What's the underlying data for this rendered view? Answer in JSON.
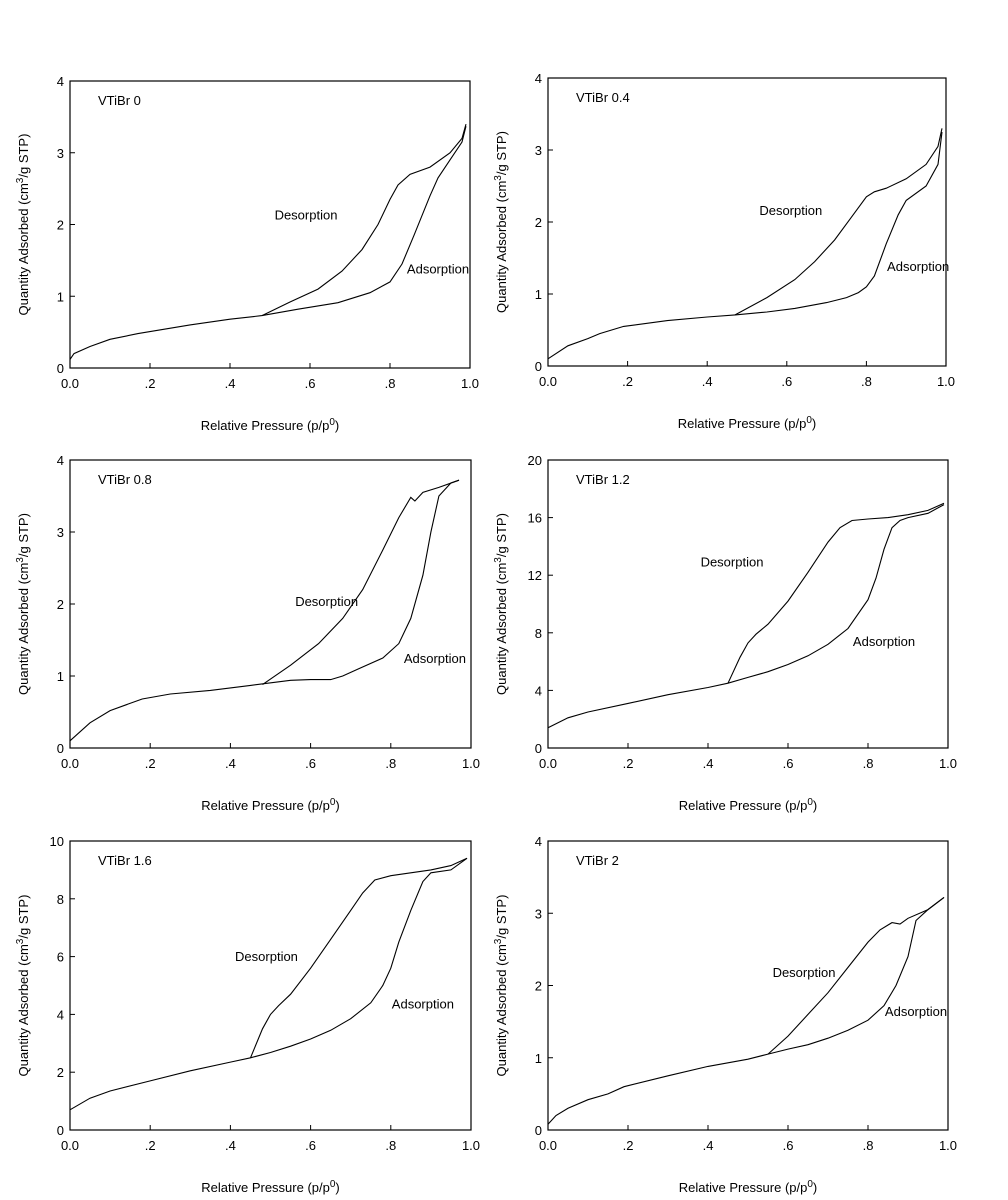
{
  "chart_data": [
    {
      "type": "line",
      "title": "VTiBr 0",
      "xlabel": "Relative Pressure (p/p0)",
      "ylabel": "Quantity Adsorbed (cm3/g STP)",
      "xlim": [
        0,
        1.0
      ],
      "ylim": [
        0,
        4
      ],
      "xticks": [
        "0.0",
        ".2",
        ".4",
        ".6",
        ".8",
        "1.0"
      ],
      "yticks": [
        "0",
        "1",
        "2",
        "3",
        "4"
      ],
      "grid": false,
      "annotations": [
        {
          "text": "Desorption",
          "x": 0.59,
          "y": 2.07
        },
        {
          "text": "Adsorption",
          "x": 0.92,
          "y": 1.32
        }
      ],
      "series": [
        {
          "name": "Adsorption",
          "x": [
            0.0,
            0.01,
            0.05,
            0.1,
            0.17,
            0.3,
            0.4,
            0.48,
            0.57,
            0.67,
            0.75,
            0.8,
            0.83,
            0.86,
            0.9,
            0.92,
            0.95,
            0.98,
            0.99
          ],
          "y": [
            0.12,
            0.2,
            0.3,
            0.4,
            0.48,
            0.6,
            0.68,
            0.73,
            0.82,
            0.91,
            1.05,
            1.2,
            1.45,
            1.85,
            2.4,
            2.65,
            2.9,
            3.15,
            3.37
          ]
        },
        {
          "name": "Desorption",
          "x": [
            0.48,
            0.55,
            0.62,
            0.68,
            0.73,
            0.77,
            0.8,
            0.82,
            0.85,
            0.9,
            0.95,
            0.98,
            0.99
          ],
          "y": [
            0.73,
            0.92,
            1.1,
            1.35,
            1.65,
            2.0,
            2.35,
            2.55,
            2.7,
            2.8,
            3.0,
            3.2,
            3.4
          ]
        }
      ]
    },
    {
      "type": "line",
      "title": "VTiBr 0.4",
      "xlabel": "Relative Pressure (p/p0)",
      "ylabel": "Quantity Adsorbed (cm3/g STP)",
      "xlim": [
        0,
        1.0
      ],
      "ylim": [
        0,
        4
      ],
      "xticks": [
        "0.0",
        ".2",
        ".4",
        ".6",
        ".8",
        "1.0"
      ],
      "yticks": [
        "0",
        "1",
        "2",
        "3",
        "4"
      ],
      "grid": false,
      "annotations": [
        {
          "text": "Desorption",
          "x": 0.61,
          "y": 2.1
        },
        {
          "text": "Adsorption",
          "x": 0.93,
          "y": 1.32
        }
      ],
      "series": [
        {
          "name": "Adsorption",
          "x": [
            0.0,
            0.05,
            0.1,
            0.13,
            0.19,
            0.3,
            0.4,
            0.47,
            0.55,
            0.62,
            0.7,
            0.75,
            0.78,
            0.8,
            0.82,
            0.85,
            0.88,
            0.9,
            0.95,
            0.98,
            0.99
          ],
          "y": [
            0.1,
            0.28,
            0.38,
            0.45,
            0.55,
            0.63,
            0.68,
            0.71,
            0.75,
            0.8,
            0.88,
            0.95,
            1.02,
            1.1,
            1.25,
            1.7,
            2.1,
            2.3,
            2.5,
            2.8,
            3.25
          ]
        },
        {
          "name": "Desorption",
          "x": [
            0.47,
            0.55,
            0.62,
            0.67,
            0.72,
            0.76,
            0.8,
            0.82,
            0.85,
            0.9,
            0.95,
            0.98,
            0.99
          ],
          "y": [
            0.71,
            0.95,
            1.2,
            1.45,
            1.75,
            2.05,
            2.35,
            2.42,
            2.47,
            2.6,
            2.8,
            3.05,
            3.3
          ]
        }
      ]
    },
    {
      "type": "line",
      "title": "VTiBr 0.8",
      "xlabel": "Relative Pressure (p/p0)",
      "ylabel": "Quantity Adsorbed (cm3/g STP)",
      "xlim": [
        0,
        1.0
      ],
      "ylim": [
        0,
        4
      ],
      "xticks": [
        "0.0",
        ".2",
        ".4",
        ".6",
        ".8",
        "1.0"
      ],
      "yticks": [
        "0",
        "1",
        "2",
        "3",
        "4"
      ],
      "grid": false,
      "annotations": [
        {
          "text": "Desorption",
          "x": 0.64,
          "y": 1.97
        },
        {
          "text": "Adsorption",
          "x": 0.91,
          "y": 1.18
        }
      ],
      "series": [
        {
          "name": "Adsorption",
          "x": [
            0.0,
            0.05,
            0.1,
            0.14,
            0.18,
            0.25,
            0.35,
            0.45,
            0.55,
            0.6,
            0.65,
            0.68,
            0.72,
            0.78,
            0.82,
            0.85,
            0.88,
            0.9,
            0.92,
            0.95,
            0.97
          ],
          "y": [
            0.1,
            0.35,
            0.52,
            0.6,
            0.68,
            0.75,
            0.8,
            0.87,
            0.94,
            0.95,
            0.95,
            1.0,
            1.1,
            1.25,
            1.45,
            1.8,
            2.4,
            3.0,
            3.5,
            3.68,
            3.72
          ]
        },
        {
          "name": "Desorption",
          "x": [
            0.48,
            0.55,
            0.62,
            0.68,
            0.73,
            0.78,
            0.82,
            0.85,
            0.86,
            0.88,
            0.92,
            0.97
          ],
          "y": [
            0.88,
            1.15,
            1.45,
            1.8,
            2.2,
            2.75,
            3.2,
            3.48,
            3.43,
            3.55,
            3.62,
            3.72
          ]
        }
      ]
    },
    {
      "type": "line",
      "title": "VTiBr 1.2",
      "xlabel": "Relative Pressure (p/p0)",
      "ylabel": "Quantity Adsorbed (cm3/g STP)",
      "xlim": [
        0,
        1.0
      ],
      "ylim": [
        0,
        20
      ],
      "xticks": [
        "0.0",
        ".2",
        ".4",
        ".6",
        ".8",
        "1.0"
      ],
      "yticks": [
        "0",
        "4",
        "8",
        "12",
        "16",
        "20"
      ],
      "grid": false,
      "annotations": [
        {
          "text": "Desorption",
          "x": 0.46,
          "y": 12.6
        },
        {
          "text": "Adsorption",
          "x": 0.84,
          "y": 7.1
        }
      ],
      "series": [
        {
          "name": "Adsorption",
          "x": [
            0.0,
            0.05,
            0.1,
            0.2,
            0.3,
            0.4,
            0.45,
            0.5,
            0.55,
            0.6,
            0.65,
            0.7,
            0.75,
            0.8,
            0.82,
            0.84,
            0.86,
            0.88,
            0.9,
            0.95,
            0.99
          ],
          "y": [
            1.4,
            2.1,
            2.5,
            3.1,
            3.7,
            4.2,
            4.5,
            4.9,
            5.3,
            5.8,
            6.4,
            7.2,
            8.3,
            10.3,
            11.8,
            13.8,
            15.3,
            15.8,
            16.0,
            16.3,
            16.9
          ]
        },
        {
          "name": "Desorption",
          "x": [
            0.45,
            0.48,
            0.5,
            0.52,
            0.55,
            0.6,
            0.65,
            0.7,
            0.73,
            0.76,
            0.8,
            0.85,
            0.9,
            0.95,
            0.99
          ],
          "y": [
            4.5,
            6.3,
            7.3,
            7.9,
            8.6,
            10.2,
            12.2,
            14.3,
            15.3,
            15.8,
            15.9,
            16.0,
            16.2,
            16.5,
            17.0
          ]
        }
      ]
    },
    {
      "type": "line",
      "title": "VTiBr 1.6",
      "xlabel": "Relative Pressure (p/p0)",
      "ylabel": "Quantity Adsorbed (cm3/g STP)",
      "xlim": [
        0,
        1.0
      ],
      "ylim": [
        0,
        10
      ],
      "xticks": [
        "0.0",
        ".2",
        ".4",
        ".6",
        ".8",
        "1.0"
      ],
      "yticks": [
        "0",
        "2",
        "4",
        "6",
        "8",
        "10"
      ],
      "grid": false,
      "annotations": [
        {
          "text": "Desorption",
          "x": 0.49,
          "y": 5.85
        },
        {
          "text": "Adsorption",
          "x": 0.88,
          "y": 4.2
        }
      ],
      "series": [
        {
          "name": "Adsorption",
          "x": [
            0.0,
            0.05,
            0.1,
            0.2,
            0.3,
            0.4,
            0.45,
            0.5,
            0.55,
            0.6,
            0.65,
            0.7,
            0.75,
            0.78,
            0.8,
            0.82,
            0.85,
            0.88,
            0.9,
            0.95,
            0.99
          ],
          "y": [
            0.7,
            1.1,
            1.35,
            1.7,
            2.05,
            2.35,
            2.5,
            2.68,
            2.9,
            3.15,
            3.45,
            3.85,
            4.4,
            5.0,
            5.6,
            6.5,
            7.6,
            8.6,
            8.9,
            9.0,
            9.4
          ]
        },
        {
          "name": "Desorption",
          "x": [
            0.45,
            0.48,
            0.5,
            0.52,
            0.55,
            0.6,
            0.65,
            0.7,
            0.73,
            0.76,
            0.8,
            0.85,
            0.9,
            0.95,
            0.99
          ],
          "y": [
            2.5,
            3.5,
            4.0,
            4.3,
            4.7,
            5.6,
            6.6,
            7.6,
            8.2,
            8.65,
            8.8,
            8.9,
            9.0,
            9.15,
            9.4
          ]
        }
      ]
    },
    {
      "type": "line",
      "title": "VTiBr 2",
      "xlabel": "Relative Pressure (p/p0)",
      "ylabel": "Quantity Adsorbed (cm3/g STP)",
      "xlim": [
        0,
        1.0
      ],
      "ylim": [
        0,
        4
      ],
      "xticks": [
        "0.0",
        ".2",
        ".4",
        ".6",
        ".8",
        "1.0"
      ],
      "yticks": [
        "0",
        "1",
        "2",
        "3",
        "4"
      ],
      "grid": false,
      "annotations": [
        {
          "text": "Desorption",
          "x": 0.64,
          "y": 2.12
        },
        {
          "text": "Adsorption",
          "x": 0.92,
          "y": 1.58
        }
      ],
      "series": [
        {
          "name": "Adsorption",
          "x": [
            0.0,
            0.02,
            0.05,
            0.1,
            0.15,
            0.19,
            0.3,
            0.4,
            0.5,
            0.55,
            0.6,
            0.65,
            0.7,
            0.75,
            0.8,
            0.84,
            0.87,
            0.9,
            0.92,
            0.95,
            0.99
          ],
          "y": [
            0.08,
            0.2,
            0.3,
            0.42,
            0.5,
            0.6,
            0.75,
            0.88,
            0.98,
            1.05,
            1.12,
            1.18,
            1.27,
            1.38,
            1.52,
            1.72,
            2.0,
            2.4,
            2.9,
            3.05,
            3.22
          ]
        },
        {
          "name": "Desorption",
          "x": [
            0.55,
            0.6,
            0.65,
            0.7,
            0.75,
            0.8,
            0.83,
            0.86,
            0.88,
            0.9,
            0.95,
            0.99
          ],
          "y": [
            1.05,
            1.3,
            1.6,
            1.9,
            2.25,
            2.6,
            2.77,
            2.87,
            2.85,
            2.93,
            3.05,
            3.22
          ]
        }
      ]
    }
  ]
}
